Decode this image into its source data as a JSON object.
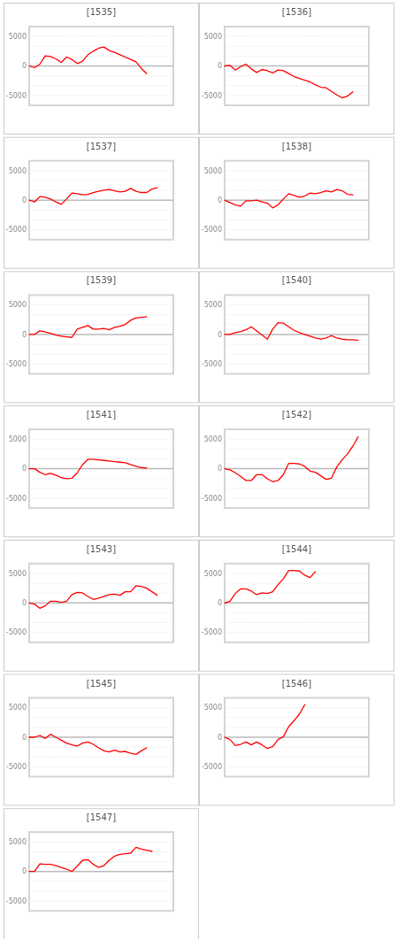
{
  "chart_data": [
    {
      "type": "line",
      "title": "[1535]",
      "categories": [
        null,
        null,
        null,
        null,
        null,
        null,
        null,
        null,
        null,
        null,
        null,
        null,
        null,
        null,
        null,
        null,
        null,
        null,
        null,
        null,
        null,
        null,
        null,
        null,
        null,
        null,
        null,
        null
      ],
      "series": [
        {
          "color": "#ff0000",
          "values": [
            0,
            -300,
            300,
            1700,
            1600,
            1200,
            600,
            1500,
            1100,
            400,
            800,
            1900,
            2500,
            3000,
            3200,
            2600,
            2300,
            1900,
            1500,
            1100,
            700,
            -400,
            -1300,
            null,
            null,
            null,
            null,
            null
          ]
        }
      ],
      "ylim": [
        -6667,
        6667
      ],
      "yticks": [
        -5000,
        {
          "value": -3333,
          "label": null
        },
        {
          "value": -1667,
          "label": null
        },
        0,
        {
          "value": 1667,
          "label": null
        },
        {
          "value": 3333,
          "label": null
        },
        5000
      ],
      "grid": "y",
      "tick_labels": "y",
      "ref_lines": [
        {
          "axis": "y",
          "value": 0,
          "color": "#bbbbbb"
        }
      ]
    },
    {
      "type": "line",
      "title": "[1536]",
      "categories": [
        null,
        null,
        null,
        null,
        null,
        null,
        null,
        null,
        null,
        null,
        null,
        null,
        null,
        null,
        null,
        null,
        null,
        null,
        null,
        null,
        null,
        null,
        null,
        null,
        null,
        null,
        null,
        null
      ],
      "series": [
        {
          "color": "#ff0000",
          "values": [
            0,
            100,
            -700,
            -100,
            300,
            -500,
            -1100,
            -600,
            -800,
            -1200,
            -700,
            -800,
            -1300,
            -1800,
            -2100,
            -2400,
            -2700,
            -3200,
            -3600,
            -3700,
            -4300,
            -4900,
            -5400,
            -5100,
            -4400,
            null,
            null,
            null
          ]
        }
      ],
      "ylim": [
        -6667,
        6667
      ],
      "yticks": [
        -5000,
        {
          "value": -3333,
          "label": null
        },
        {
          "value": -1667,
          "label": null
        },
        0,
        {
          "value": 1667,
          "label": null
        },
        {
          "value": 3333,
          "label": null
        },
        5000
      ],
      "grid": "y",
      "tick_labels": "y",
      "ref_lines": [
        {
          "axis": "y",
          "value": 0,
          "color": "#bbbbbb"
        }
      ]
    },
    {
      "type": "line",
      "title": "[1537]",
      "categories": [
        null,
        null,
        null,
        null,
        null,
        null,
        null,
        null,
        null,
        null,
        null,
        null,
        null,
        null,
        null,
        null,
        null,
        null,
        null,
        null,
        null,
        null,
        null,
        null,
        null,
        null,
        null,
        null
      ],
      "series": [
        {
          "color": "#ff0000",
          "values": [
            0,
            -300,
            600,
            500,
            200,
            -300,
            -700,
            200,
            1200,
            1100,
            900,
            1000,
            1300,
            1500,
            1700,
            1800,
            1600,
            1400,
            1500,
            2000,
            1500,
            1300,
            1300,
            1900,
            2100,
            null,
            null,
            null
          ]
        }
      ],
      "ylim": [
        -6667,
        6667
      ],
      "yticks": [
        -5000,
        {
          "value": -3333,
          "label": null
        },
        {
          "value": -1667,
          "label": null
        },
        0,
        {
          "value": 1667,
          "label": null
        },
        {
          "value": 3333,
          "label": null
        },
        5000
      ],
      "grid": "y",
      "tick_labels": "y",
      "ref_lines": [
        {
          "axis": "y",
          "value": 0,
          "color": "#bbbbbb"
        }
      ]
    },
    {
      "type": "line",
      "title": "[1538]",
      "categories": [
        null,
        null,
        null,
        null,
        null,
        null,
        null,
        null,
        null,
        null,
        null,
        null,
        null,
        null,
        null,
        null,
        null,
        null,
        null,
        null,
        null,
        null,
        null,
        null,
        null,
        null,
        null,
        null
      ],
      "series": [
        {
          "color": "#ff0000",
          "values": [
            0,
            -400,
            -800,
            -1000,
            -100,
            -100,
            0,
            -300,
            -500,
            -1300,
            -800,
            200,
            1100,
            800,
            500,
            700,
            1200,
            1100,
            1300,
            1600,
            1400,
            1800,
            1600,
            1000,
            900,
            null,
            null,
            null
          ]
        }
      ],
      "ylim": [
        -6667,
        6667
      ],
      "yticks": [
        -5000,
        {
          "value": -3333,
          "label": null
        },
        {
          "value": -1667,
          "label": null
        },
        0,
        {
          "value": 1667,
          "label": null
        },
        {
          "value": 3333,
          "label": null
        },
        5000
      ],
      "grid": "y",
      "tick_labels": "y",
      "ref_lines": [
        {
          "axis": "y",
          "value": 0,
          "color": "#bbbbbb"
        }
      ]
    },
    {
      "type": "line",
      "title": "[1539]",
      "categories": [
        null,
        null,
        null,
        null,
        null,
        null,
        null,
        null,
        null,
        null,
        null,
        null,
        null,
        null,
        null,
        null,
        null,
        null,
        null,
        null,
        null,
        null,
        null,
        null,
        null,
        null,
        null,
        null
      ],
      "series": [
        {
          "color": "#ff0000",
          "values": [
            0,
            0,
            600,
            400,
            200,
            -100,
            -300,
            -400,
            -500,
            900,
            1200,
            1500,
            900,
            900,
            1000,
            800,
            1200,
            1400,
            1700,
            2400,
            2800,
            2900,
            3000,
            null,
            null,
            null,
            null,
            null
          ]
        }
      ],
      "ylim": [
        -6667,
        6667
      ],
      "yticks": [
        -5000,
        {
          "value": -3333,
          "label": null
        },
        {
          "value": -1667,
          "label": null
        },
        0,
        {
          "value": 1667,
          "label": null
        },
        {
          "value": 3333,
          "label": null
        },
        5000
      ],
      "grid": "y",
      "tick_labels": "y",
      "ref_lines": [
        {
          "axis": "y",
          "value": 0,
          "color": "#bbbbbb"
        }
      ]
    },
    {
      "type": "line",
      "title": "[1540]",
      "categories": [
        null,
        null,
        null,
        null,
        null,
        null,
        null,
        null,
        null,
        null,
        null,
        null,
        null,
        null,
        null,
        null,
        null,
        null,
        null,
        null,
        null,
        null,
        null,
        null,
        null,
        null,
        null,
        null
      ],
      "series": [
        {
          "color": "#ff0000",
          "values": [
            0,
            0,
            300,
            500,
            800,
            1300,
            600,
            -100,
            -800,
            900,
            2000,
            1900,
            1300,
            700,
            300,
            0,
            -300,
            -600,
            -800,
            -600,
            -200,
            -600,
            -800,
            -900,
            -900,
            -1000,
            null,
            null
          ]
        }
      ],
      "ylim": [
        -6667,
        6667
      ],
      "yticks": [
        -5000,
        {
          "value": -3333,
          "label": null
        },
        {
          "value": -1667,
          "label": null
        },
        0,
        {
          "value": 1667,
          "label": null
        },
        {
          "value": 3333,
          "label": null
        },
        5000
      ],
      "grid": "y",
      "tick_labels": "y",
      "ref_lines": [
        {
          "axis": "y",
          "value": 0,
          "color": "#bbbbbb"
        }
      ]
    },
    {
      "type": "line",
      "title": "[1541]",
      "categories": [
        null,
        null,
        null,
        null,
        null,
        null,
        null,
        null,
        null,
        null,
        null,
        null,
        null,
        null,
        null,
        null,
        null,
        null,
        null,
        null,
        null,
        null,
        null,
        null,
        null,
        null,
        null,
        null
      ],
      "series": [
        {
          "color": "#ff0000",
          "values": [
            0,
            0,
            -600,
            -1000,
            -800,
            -1100,
            -1500,
            -1700,
            -1600,
            -700,
            700,
            1600,
            1600,
            1500,
            1400,
            1300,
            1200,
            1100,
            1000,
            700,
            400,
            200,
            100,
            null,
            null,
            null,
            null,
            null
          ]
        }
      ],
      "ylim": [
        -6667,
        6667
      ],
      "yticks": [
        -5000,
        {
          "value": -3333,
          "label": null
        },
        {
          "value": -1667,
          "label": null
        },
        0,
        {
          "value": 1667,
          "label": null
        },
        {
          "value": 3333,
          "label": null
        },
        5000
      ],
      "grid": "y",
      "tick_labels": "y",
      "ref_lines": [
        {
          "axis": "y",
          "value": 0,
          "color": "#bbbbbb"
        }
      ]
    },
    {
      "type": "line",
      "title": "[1542]",
      "categories": [
        null,
        null,
        null,
        null,
        null,
        null,
        null,
        null,
        null,
        null,
        null,
        null,
        null,
        null,
        null,
        null,
        null,
        null,
        null,
        null,
        null,
        null,
        null,
        null,
        null,
        null,
        null,
        null
      ],
      "series": [
        {
          "color": "#ff0000",
          "values": [
            0,
            -200,
            -700,
            -1300,
            -2000,
            -2000,
            -1000,
            -1000,
            -1700,
            -2200,
            -2000,
            -1000,
            900,
            900,
            800,
            400,
            -400,
            -600,
            -1200,
            -1800,
            -1600,
            300,
            1500,
            2500,
            3800,
            5400,
            null,
            null
          ]
        }
      ],
      "ylim": [
        -6667,
        6667
      ],
      "yticks": [
        -5000,
        {
          "value": -3333,
          "label": null
        },
        {
          "value": -1667,
          "label": null
        },
        0,
        {
          "value": 1667,
          "label": null
        },
        {
          "value": 3333,
          "label": null
        },
        5000
      ],
      "grid": "y",
      "tick_labels": "y",
      "ref_lines": [
        {
          "axis": "y",
          "value": 0,
          "color": "#bbbbbb"
        }
      ]
    },
    {
      "type": "line",
      "title": "[1543]",
      "categories": [
        null,
        null,
        null,
        null,
        null,
        null,
        null,
        null,
        null,
        null,
        null,
        null,
        null,
        null,
        null,
        null,
        null,
        null,
        null,
        null,
        null,
        null,
        null,
        null,
        null,
        null,
        null,
        null
      ],
      "series": [
        {
          "color": "#ff0000",
          "values": [
            0,
            -200,
            -900,
            -500,
            300,
            300,
            100,
            300,
            1400,
            1800,
            1700,
            1100,
            600,
            800,
            1100,
            1400,
            1500,
            1300,
            1900,
            1900,
            2900,
            2800,
            2500,
            1900,
            1300,
            null,
            null,
            null
          ]
        }
      ],
      "ylim": [
        -6667,
        6667
      ],
      "yticks": [
        -5000,
        {
          "value": -3333,
          "label": null
        },
        {
          "value": -1667,
          "label": null
        },
        0,
        {
          "value": 1667,
          "label": null
        },
        {
          "value": 3333,
          "label": null
        },
        5000
      ],
      "grid": "y",
      "tick_labels": "y",
      "ref_lines": [
        {
          "axis": "y",
          "value": 0,
          "color": "#bbbbbb"
        }
      ]
    },
    {
      "type": "line",
      "title": "[1544]",
      "categories": [
        null,
        null,
        null,
        null,
        null,
        null,
        null,
        null,
        null,
        null,
        null,
        null,
        null,
        null,
        null,
        null,
        null,
        null,
        null,
        null,
        null,
        null,
        null,
        null,
        null,
        null,
        null,
        null
      ],
      "series": [
        {
          "color": "#ff0000",
          "values": [
            0,
            300,
            1600,
            2400,
            2400,
            2000,
            1400,
            1700,
            1600,
            1900,
            3100,
            4100,
            5500,
            5500,
            5400,
            4700,
            4300,
            5300,
            null,
            null,
            null,
            null,
            null,
            null,
            null,
            null,
            null,
            null
          ]
        }
      ],
      "ylim": [
        -6667,
        6667
      ],
      "yticks": [
        -5000,
        {
          "value": -3333,
          "label": null
        },
        {
          "value": -1667,
          "label": null
        },
        0,
        {
          "value": 1667,
          "label": null
        },
        {
          "value": 3333,
          "label": null
        },
        5000
      ],
      "grid": "y",
      "tick_labels": "y",
      "ref_lines": [
        {
          "axis": "y",
          "value": 0,
          "color": "#bbbbbb"
        }
      ]
    },
    {
      "type": "line",
      "title": "[1545]",
      "categories": [
        null,
        null,
        null,
        null,
        null,
        null,
        null,
        null,
        null,
        null,
        null,
        null,
        null,
        null,
        null,
        null,
        null,
        null,
        null,
        null,
        null,
        null,
        null,
        null,
        null,
        null,
        null,
        null
      ],
      "series": [
        {
          "color": "#ff0000",
          "values": [
            0,
            0,
            300,
            -200,
            500,
            0,
            -500,
            -1000,
            -1300,
            -1500,
            -1000,
            -800,
            -1200,
            -1800,
            -2300,
            -2500,
            -2200,
            -2500,
            -2400,
            -2700,
            -2900,
            -2300,
            -1800,
            null,
            null,
            null,
            null,
            null
          ]
        }
      ],
      "ylim": [
        -6667,
        6667
      ],
      "yticks": [
        -5000,
        {
          "value": -3333,
          "label": null
        },
        {
          "value": -1667,
          "label": null
        },
        0,
        {
          "value": 1667,
          "label": null
        },
        {
          "value": 3333,
          "label": null
        },
        5000
      ],
      "grid": "y",
      "tick_labels": "y",
      "ref_lines": [
        {
          "axis": "y",
          "value": 0,
          "color": "#bbbbbb"
        }
      ]
    },
    {
      "type": "line",
      "title": "[1546]",
      "categories": [
        null,
        null,
        null,
        null,
        null,
        null,
        null,
        null,
        null,
        null,
        null,
        null,
        null,
        null,
        null,
        null,
        null,
        null,
        null,
        null,
        null,
        null,
        null,
        null,
        null,
        null,
        null,
        null
      ],
      "series": [
        {
          "color": "#ff0000",
          "values": [
            0,
            -400,
            -1400,
            -1200,
            -800,
            -1300,
            -800,
            -1300,
            -1900,
            -1600,
            -400,
            100,
            1800,
            2800,
            3900,
            5500,
            null,
            null,
            null,
            null,
            null,
            null,
            null,
            null,
            null,
            null,
            null,
            null
          ]
        }
      ],
      "ylim": [
        -6667,
        6667
      ],
      "yticks": [
        -5000,
        {
          "value": -3333,
          "label": null
        },
        {
          "value": -1667,
          "label": null
        },
        0,
        {
          "value": 1667,
          "label": null
        },
        {
          "value": 3333,
          "label": null
        },
        5000
      ],
      "grid": "y",
      "tick_labels": "y",
      "ref_lines": [
        {
          "axis": "y",
          "value": 0,
          "color": "#bbbbbb"
        }
      ]
    },
    {
      "type": "line",
      "title": "[1547]",
      "categories": [
        null,
        null,
        null,
        null,
        null,
        null,
        null,
        null,
        null,
        null,
        null,
        null,
        null,
        null,
        null,
        null,
        null,
        null,
        null,
        null,
        null,
        null,
        null,
        null,
        null,
        null,
        null,
        null
      ],
      "series": [
        {
          "color": "#ff0000",
          "values": [
            0,
            0,
            1300,
            1200,
            1200,
            1000,
            700,
            400,
            0,
            900,
            1900,
            2000,
            1200,
            700,
            1000,
            1900,
            2600,
            2900,
            3000,
            3100,
            4100,
            3800,
            3600,
            3400,
            null,
            null,
            null,
            null
          ]
        }
      ],
      "ylim": [
        -6667,
        6667
      ],
      "yticks": [
        -5000,
        {
          "value": -3333,
          "label": null
        },
        {
          "value": -1667,
          "label": null
        },
        0,
        {
          "value": 1667,
          "label": null
        },
        {
          "value": 3333,
          "label": null
        },
        5000
      ],
      "grid": "y",
      "tick_labels": "y",
      "ref_lines": [
        {
          "axis": "y",
          "value": 0,
          "color": "#bbbbbb"
        }
      ]
    }
  ]
}
